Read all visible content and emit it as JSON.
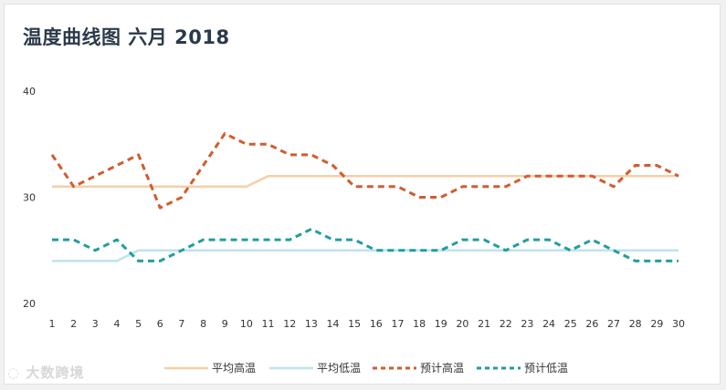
{
  "title": "温度曲线图 六月 2018",
  "watermark": "大数跨境",
  "colors": {
    "avg_high": "#f6cfa6",
    "avg_low": "#bfe3ec",
    "forecast_high": "#d35b2f",
    "forecast_low": "#1f9e9e"
  },
  "chart_data": {
    "type": "line",
    "title": "温度曲线图 六月 2018",
    "xlabel": "",
    "ylabel": "",
    "x": [
      1,
      2,
      3,
      4,
      5,
      6,
      7,
      8,
      9,
      10,
      11,
      12,
      13,
      14,
      15,
      16,
      17,
      18,
      19,
      20,
      21,
      22,
      23,
      24,
      25,
      26,
      27,
      28,
      29,
      30
    ],
    "ylim": [
      20,
      40
    ],
    "yticks": [
      20,
      30,
      40
    ],
    "grid": false,
    "legend_position": "bottom",
    "series": [
      {
        "name": "平均高温",
        "style": "solid",
        "color": "#f6cfa6",
        "values": [
          31,
          31,
          31,
          31,
          31,
          31,
          31,
          31,
          31,
          31,
          32,
          32,
          32,
          32,
          32,
          32,
          32,
          32,
          32,
          32,
          32,
          32,
          32,
          32,
          32,
          32,
          32,
          32,
          32,
          32
        ]
      },
      {
        "name": "平均低温",
        "style": "solid",
        "color": "#bfe3ec",
        "values": [
          24,
          24,
          24,
          24,
          25,
          25,
          25,
          25,
          25,
          25,
          25,
          25,
          25,
          25,
          25,
          25,
          25,
          25,
          25,
          25,
          25,
          25,
          25,
          25,
          25,
          25,
          25,
          25,
          25,
          25
        ]
      },
      {
        "name": "预计高温",
        "style": "dashed",
        "color": "#d35b2f",
        "values": [
          34,
          31,
          32,
          33,
          34,
          29,
          30,
          33,
          36,
          35,
          35,
          34,
          34,
          33,
          31,
          31,
          31,
          30,
          30,
          31,
          31,
          31,
          32,
          32,
          32,
          32,
          31,
          33,
          33,
          32
        ]
      },
      {
        "name": "预计低温",
        "style": "dashed",
        "color": "#1f9e9e",
        "values": [
          26,
          26,
          25,
          26,
          24,
          24,
          25,
          26,
          26,
          26,
          26,
          26,
          27,
          26,
          26,
          25,
          25,
          25,
          25,
          26,
          26,
          25,
          26,
          26,
          25,
          26,
          25,
          24,
          24,
          24
        ]
      }
    ]
  }
}
